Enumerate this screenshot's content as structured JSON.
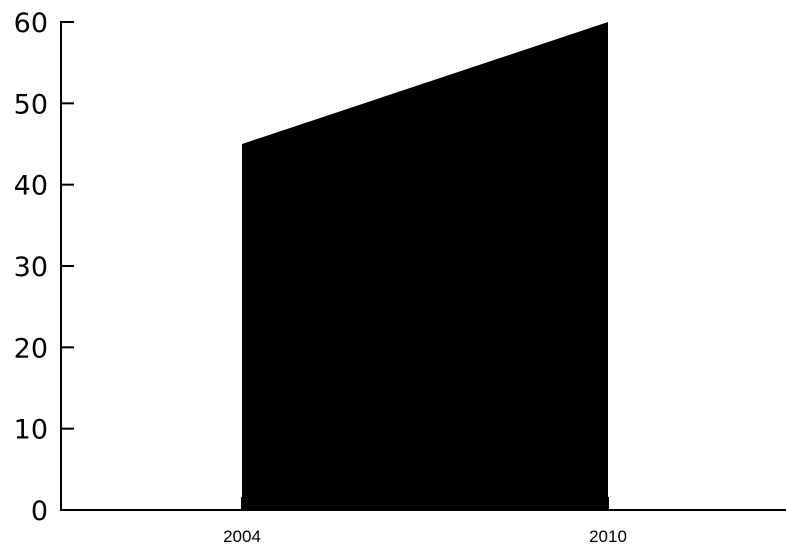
{
  "chart_data": {
    "type": "area",
    "x": [
      "2004",
      "2010"
    ],
    "values": [
      45,
      60
    ],
    "ylim": [
      0,
      60
    ],
    "yticks": [
      "0",
      "10",
      "20",
      "30",
      "40",
      "50",
      "60"
    ],
    "xticks": [
      "2004",
      "2010"
    ],
    "grid": false,
    "legend": "none",
    "fill_color": "#000000",
    "axis_color": "#000000"
  }
}
